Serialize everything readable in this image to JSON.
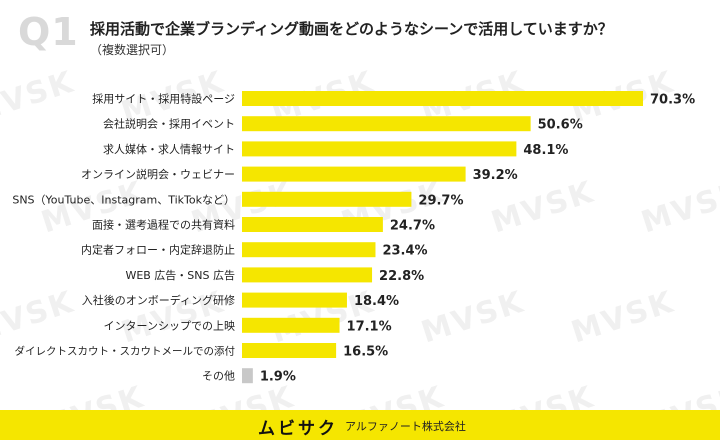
{
  "header": {
    "badge": "Q1",
    "title": "採用活動で企業ブランディング動画をどのようなシーンで活用していますか？",
    "subtitle": "（複数選択可）"
  },
  "watermark_text": "MVSK",
  "footer": {
    "brand": "ムビサク",
    "company": "アルファノート株式会社"
  },
  "colors": {
    "bar": "#f5e600",
    "other_bar": "#c8c8c8",
    "footer_bg": "#f5e600",
    "watermark": "#f0f0f0",
    "badge": "#d9d9d9"
  },
  "chart_data": {
    "type": "bar",
    "orientation": "horizontal",
    "categories": [
      "採用サイト・採用特設ページ",
      "会社説明会・採用イベント",
      "求人媒体・求人情報サイト",
      "オンライン説明会・ウェビナー",
      "SNS（YouTube、Instagram、TikTokなど）",
      "面接・選考過程での共有資料",
      "内定者フォロー・内定辞退防止",
      "WEB 広告・SNS 広告",
      "入社後のオンボーディング研修",
      "インターンシップでの上映",
      "ダイレクトスカウト・スカウトメールでの添付",
      "その他"
    ],
    "values": [
      70.3,
      50.6,
      48.1,
      39.2,
      29.7,
      24.7,
      23.4,
      22.8,
      18.4,
      17.1,
      16.5,
      1.9
    ],
    "value_labels": [
      "70.3%",
      "50.6%",
      "48.1%",
      "39.2%",
      "29.7%",
      "24.7%",
      "23.4%",
      "22.8%",
      "18.4%",
      "17.1%",
      "16.5%",
      "1.9%"
    ],
    "xlim": [
      0,
      70.3
    ],
    "grid": false,
    "legend": "none"
  }
}
